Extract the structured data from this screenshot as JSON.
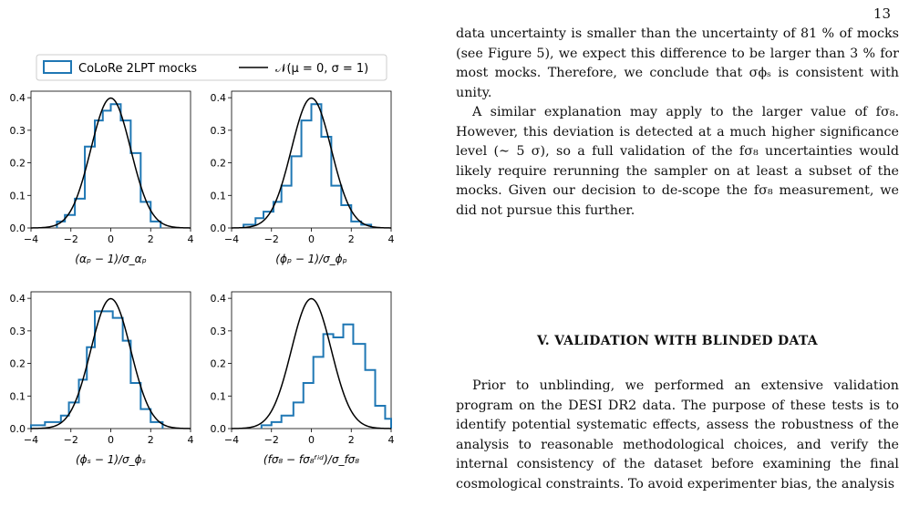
{
  "page": {
    "number": "13"
  },
  "figure": {
    "legend": {
      "hist_label": "CoLoRe 2LPT mocks",
      "curve_label": "𝒩(μ = 0, σ = 1)"
    },
    "colors": {
      "histogram": "#1f77b4",
      "gaussian": "#000000"
    }
  },
  "chart_data": [
    {
      "type": "step-histogram",
      "xlabel": "(αₚ − 1)/σ_αₚ",
      "xlim": [
        -4,
        4
      ],
      "ylim": [
        0,
        0.42
      ],
      "xticks": [
        "−4",
        "−2",
        "0",
        "2",
        "4"
      ],
      "yticks": [
        "0.0",
        "0.1",
        "0.2",
        "0.3",
        "0.4"
      ],
      "bin_edges": [
        -2.7,
        -2.3,
        -1.8,
        -1.3,
        -0.8,
        -0.4,
        0.0,
        0.5,
        1.0,
        1.5,
        2.0,
        2.5
      ],
      "values": [
        0.02,
        0.04,
        0.09,
        0.25,
        0.33,
        0.36,
        0.38,
        0.33,
        0.23,
        0.08,
        0.02
      ],
      "gaussian": {
        "mu": 0,
        "sigma": 1
      }
    },
    {
      "type": "step-histogram",
      "xlabel": "(ϕₚ − 1)/σ_ϕₚ",
      "xlim": [
        -4,
        4
      ],
      "ylim": [
        0,
        0.42
      ],
      "xticks": [
        "−4",
        "−2",
        "0",
        "2",
        "4"
      ],
      "yticks": [
        "0.0",
        "0.1",
        "0.2",
        "0.3",
        "0.4"
      ],
      "bin_edges": [
        -3.4,
        -2.8,
        -2.4,
        -1.9,
        -1.5,
        -1.0,
        -0.5,
        0.0,
        0.5,
        1.0,
        1.5,
        2.0,
        2.5,
        3.0
      ],
      "values": [
        0.01,
        0.03,
        0.05,
        0.08,
        0.13,
        0.22,
        0.33,
        0.38,
        0.28,
        0.13,
        0.07,
        0.02,
        0.01
      ],
      "gaussian": {
        "mu": 0,
        "sigma": 1
      }
    },
    {
      "type": "step-histogram",
      "xlabel": "(ϕₛ − 1)/σ_ϕₛ",
      "xlim": [
        -4,
        4
      ],
      "ylim": [
        0,
        0.42
      ],
      "xticks": [
        "−4",
        "−2",
        "0",
        "2",
        "4"
      ],
      "yticks": [
        "0.0",
        "0.1",
        "0.2",
        "0.3",
        "0.4"
      ],
      "bin_edges": [
        -4.0,
        -3.3,
        -2.5,
        -2.1,
        -1.6,
        -1.2,
        -0.8,
        -0.3,
        0.1,
        0.6,
        1.0,
        1.5,
        2.0,
        2.6
      ],
      "values": [
        0.01,
        0.02,
        0.04,
        0.08,
        0.15,
        0.25,
        0.36,
        0.36,
        0.34,
        0.27,
        0.14,
        0.06,
        0.02
      ],
      "gaussian": {
        "mu": 0,
        "sigma": 1
      }
    },
    {
      "type": "step-histogram",
      "xlabel": "(fσ₈ − fσ₈ᶠⁱᵈ)/σ_fσ₈",
      "xlim": [
        -4,
        4
      ],
      "ylim": [
        0,
        0.42
      ],
      "xticks": [
        "−4",
        "−2",
        "0",
        "2",
        "4"
      ],
      "yticks": [
        "0.0",
        "0.1",
        "0.2",
        "0.3",
        "0.4"
      ],
      "bin_edges": [
        -2.5,
        -2.0,
        -1.5,
        -0.9,
        -0.4,
        0.1,
        0.6,
        1.1,
        1.6,
        2.1,
        2.7,
        3.2,
        3.7,
        4.0
      ],
      "values": [
        0.01,
        0.02,
        0.04,
        0.08,
        0.14,
        0.22,
        0.29,
        0.28,
        0.32,
        0.26,
        0.18,
        0.07,
        0.03
      ],
      "gaussian": {
        "mu": 0,
        "sigma": 1
      }
    }
  ],
  "text": {
    "p1": "data uncertainty is smaller than the uncertainty of 81 % of mocks (see Figure 5), we expect this difference to be larger than 3 % for most mocks. Therefore, we conclude that σϕₛ is consistent with unity.",
    "p2": "A similar explanation may apply to the larger value of fσ₈. However, this deviation is detected at a much higher significance level (∼ 5 σ), so a full validation of the fσ₈ uncertainties would likely require rerunning the sampler on at least a subset of the mocks. Given our decision to de-scope the fσ₈ measurement, we did not pursue this further.",
    "section_heading": "V.   VALIDATION WITH BLINDED DATA",
    "p3": "Prior to unblinding, we performed an extensive validation program on the DESI DR2 data. The purpose of these tests is to identify potential systematic effects, assess the robustness of the analysis to reasonable methodological choices, and verify the internal consistency of the dataset before examining the final cosmological constraints. To avoid experimenter bias, the analysis"
  }
}
